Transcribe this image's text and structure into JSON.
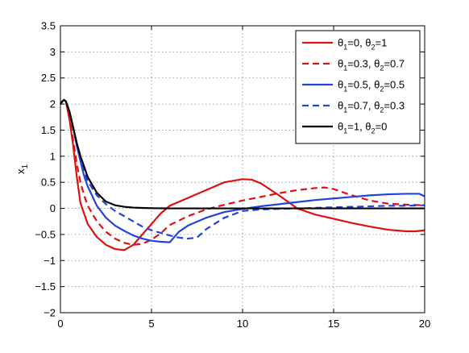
{
  "chart_data": {
    "type": "line",
    "title": "",
    "xlabel": "",
    "ylabel": "x",
    "ylabel_subscript": "1",
    "xlim": [
      0,
      20
    ],
    "ylim": [
      -2,
      3.5
    ],
    "xticks": [
      0,
      5,
      10,
      15,
      20
    ],
    "yticks": [
      -2,
      -1.5,
      -1,
      -0.5,
      0,
      0.5,
      1,
      1.5,
      2,
      2.5,
      3,
      3.5
    ],
    "xtick_labels": [
      "0",
      "5",
      "10",
      "15",
      "20"
    ],
    "ytick_labels": [
      "−2",
      "−1.5",
      "−1",
      "−0.5",
      "0",
      "0.5",
      "1",
      "1.5",
      "2",
      "2.5",
      "3",
      "3.5"
    ],
    "grid": true,
    "grid_style": "dotted",
    "legend_position": "top-right",
    "series": [
      {
        "legend": [
          {
            "t": "θ"
          },
          {
            "t": "1",
            "sub": true
          },
          {
            "t": "=0, θ"
          },
          {
            "t": "2",
            "sub": true
          },
          {
            "t": "=1"
          }
        ],
        "color": "#dd1111",
        "dash": "solid",
        "x": [
          0,
          0.1,
          0.2,
          0.3,
          0.5,
          0.7,
          0.9,
          1.1,
          1.3,
          1.5,
          2,
          2.5,
          3,
          3.5,
          4,
          4.5,
          5,
          5.5,
          6,
          7,
          8,
          9,
          10,
          10.5,
          11,
          12,
          13,
          14,
          15,
          16,
          17,
          18,
          19,
          19.5,
          20
        ],
        "y": [
          2.0,
          2.05,
          2.08,
          2.05,
          1.7,
          1.2,
          0.6,
          0.1,
          -0.1,
          -0.3,
          -0.55,
          -0.7,
          -0.78,
          -0.8,
          -0.7,
          -0.5,
          -0.3,
          -0.1,
          0.05,
          0.2,
          0.35,
          0.5,
          0.56,
          0.55,
          0.48,
          0.25,
          0.0,
          -0.12,
          -0.2,
          -0.28,
          -0.35,
          -0.41,
          -0.44,
          -0.44,
          -0.42
        ]
      },
      {
        "legend": [
          {
            "t": "θ"
          },
          {
            "t": "1",
            "sub": true
          },
          {
            "t": "=0.3, θ"
          },
          {
            "t": "2",
            "sub": true
          },
          {
            "t": "=0.7"
          }
        ],
        "color": "#dd1111",
        "dash": "dashed",
        "x": [
          0,
          0.1,
          0.2,
          0.3,
          0.5,
          0.7,
          0.9,
          1.1,
          1.3,
          1.5,
          2,
          2.5,
          3,
          3.5,
          4,
          4.5,
          5,
          5.5,
          6,
          7,
          8,
          9,
          10,
          11,
          12,
          13,
          14,
          14.5,
          15,
          16,
          17,
          18,
          19,
          20
        ],
        "y": [
          2.0,
          2.05,
          2.08,
          2.05,
          1.75,
          1.3,
          0.85,
          0.5,
          0.25,
          0.05,
          -0.25,
          -0.45,
          -0.58,
          -0.66,
          -0.7,
          -0.68,
          -0.6,
          -0.48,
          -0.32,
          -0.15,
          -0.02,
          0.07,
          0.15,
          0.22,
          0.29,
          0.35,
          0.39,
          0.4,
          0.37,
          0.25,
          0.15,
          0.09,
          0.07,
          0.06
        ]
      },
      {
        "legend": [
          {
            "t": "θ"
          },
          {
            "t": "1",
            "sub": true
          },
          {
            "t": "=0.5, θ"
          },
          {
            "t": "2",
            "sub": true
          },
          {
            "t": "=0.5"
          }
        ],
        "color": "#2244dd",
        "dash": "solid",
        "x": [
          0,
          0.1,
          0.2,
          0.3,
          0.5,
          0.7,
          0.9,
          1.1,
          1.3,
          1.5,
          2,
          2.5,
          3,
          3.5,
          4,
          4.5,
          5,
          5.5,
          6,
          6.5,
          7,
          8,
          9,
          10,
          11,
          12,
          13,
          14,
          15,
          16,
          17,
          18,
          19,
          19.7,
          20
        ],
        "y": [
          2.0,
          2.05,
          2.08,
          2.05,
          1.85,
          1.55,
          1.2,
          0.9,
          0.62,
          0.42,
          0.05,
          -0.18,
          -0.33,
          -0.43,
          -0.52,
          -0.58,
          -0.62,
          -0.64,
          -0.65,
          -0.45,
          -0.33,
          -0.18,
          -0.07,
          -0.01,
          0.04,
          0.08,
          0.12,
          0.16,
          0.19,
          0.22,
          0.25,
          0.27,
          0.28,
          0.28,
          0.23
        ]
      },
      {
        "legend": [
          {
            "t": "θ"
          },
          {
            "t": "1",
            "sub": true
          },
          {
            "t": "=0.7, θ"
          },
          {
            "t": "2",
            "sub": true
          },
          {
            "t": "=0.3"
          }
        ],
        "color": "#2244dd",
        "dash": "dashed",
        "x": [
          0,
          0.1,
          0.2,
          0.3,
          0.5,
          0.7,
          0.9,
          1.1,
          1.3,
          1.5,
          2,
          2.5,
          3,
          3.5,
          4,
          4.5,
          5,
          5.5,
          6,
          6.5,
          7,
          7.5,
          8,
          9,
          10,
          11,
          12,
          13,
          14,
          15,
          16,
          17,
          18,
          19,
          20
        ],
        "y": [
          2.0,
          2.05,
          2.08,
          2.05,
          1.85,
          1.55,
          1.22,
          0.95,
          0.72,
          0.52,
          0.25,
          0.08,
          -0.05,
          -0.15,
          -0.25,
          -0.35,
          -0.42,
          -0.47,
          -0.52,
          -0.56,
          -0.58,
          -0.56,
          -0.4,
          -0.18,
          -0.05,
          -0.02,
          -0.01,
          0.0,
          0.01,
          0.02,
          0.03,
          0.04,
          0.05,
          0.05,
          0.06
        ]
      },
      {
        "legend": [
          {
            "t": "θ"
          },
          {
            "t": "1",
            "sub": true
          },
          {
            "t": "=1, θ"
          },
          {
            "t": "2",
            "sub": true
          },
          {
            "t": "=0"
          }
        ],
        "color": "#000000",
        "dash": "solid",
        "x": [
          0,
          0.1,
          0.2,
          0.3,
          0.5,
          0.7,
          0.9,
          1.1,
          1.3,
          1.5,
          2,
          2.5,
          3,
          3.5,
          4,
          4.5,
          5,
          6,
          8,
          10,
          12,
          14,
          16,
          18,
          20
        ],
        "y": [
          2.0,
          2.05,
          2.08,
          2.05,
          1.85,
          1.55,
          1.25,
          1.0,
          0.8,
          0.6,
          0.3,
          0.13,
          0.06,
          0.03,
          0.015,
          0.008,
          0.004,
          0.0,
          0.0,
          0.0,
          0.0,
          0.0,
          0.0,
          0.0,
          0.0
        ]
      }
    ]
  }
}
